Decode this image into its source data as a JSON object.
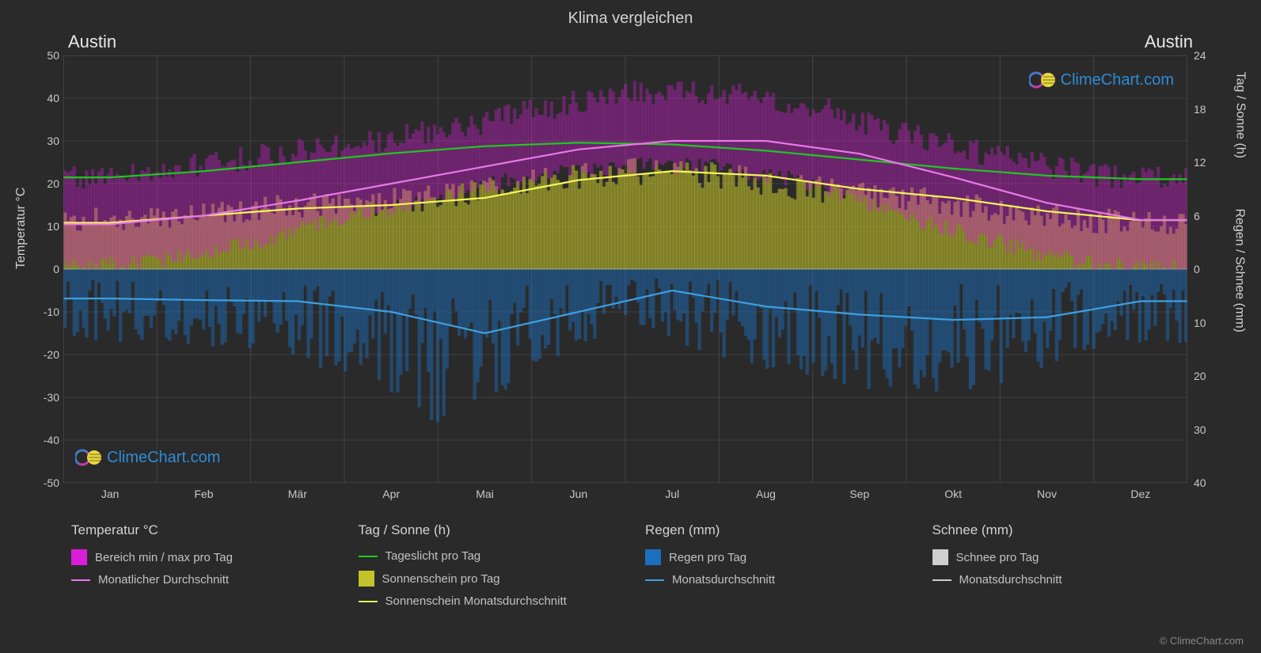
{
  "title": "Klima vergleichen",
  "city_left": "Austin",
  "city_right": "Austin",
  "watermark_text": "ClimeChart.com",
  "copyright": "© ClimeChart.com",
  "axes": {
    "left_label": "Temperatur °C",
    "right_top_label": "Tag / Sonne (h)",
    "right_bottom_label": "Regen / Schnee (mm)",
    "left_ticks": [
      50,
      40,
      30,
      20,
      10,
      0,
      -10,
      -20,
      -30,
      -40,
      -50
    ],
    "left_min": -50,
    "left_max": 50,
    "right_top_ticks": [
      24,
      18,
      12,
      6,
      0
    ],
    "right_top_min": 0,
    "right_top_max": 24,
    "right_bottom_ticks": [
      0,
      10,
      20,
      30,
      40
    ],
    "right_bottom_min": 0,
    "right_bottom_max": 40,
    "months": [
      "Jan",
      "Feb",
      "Mär",
      "Apr",
      "Mai",
      "Jun",
      "Jul",
      "Aug",
      "Sep",
      "Okt",
      "Nov",
      "Dez"
    ]
  },
  "colors": {
    "background": "#2a2a2a",
    "grid": "#555555",
    "axis_text": "#c8c8c8",
    "temp_range_fill": "#d91ed9",
    "temp_avg_line": "#e878e8",
    "daylight_line": "#1fc71f",
    "sunshine_fill": "#c2c22a",
    "sunshine_line": "#f5f55a",
    "rain_fill": "#1a6fbf",
    "rain_line": "#3d9fe0",
    "snow_fill": "#cfcfcf",
    "snow_line": "#cfcfcf",
    "zero_line": "#888888"
  },
  "series": {
    "daylight_h": [
      10.3,
      11.0,
      12.0,
      13.0,
      13.8,
      14.2,
      14.0,
      13.3,
      12.3,
      11.3,
      10.5,
      10.1
    ],
    "sunshine_h": [
      5.2,
      6.0,
      6.8,
      7.2,
      8.0,
      10.0,
      11.0,
      10.5,
      9.0,
      8.0,
      6.5,
      5.5
    ],
    "temp_avg_c": [
      10.5,
      12.5,
      16.0,
      20.0,
      24.0,
      28.0,
      30.0,
      30.0,
      27.0,
      21.5,
      15.5,
      11.5
    ],
    "temp_max_c": [
      20,
      22,
      25,
      28,
      31,
      36,
      40,
      40,
      37,
      30,
      25,
      21
    ],
    "temp_min_c": [
      0,
      2,
      6,
      12,
      17,
      22,
      24,
      24,
      20,
      12,
      6,
      1
    ],
    "rain_mm": [
      5.5,
      5.8,
      6.0,
      8.0,
      12.0,
      8.0,
      4.0,
      7.0,
      8.5,
      9.5,
      9.0,
      6.0
    ]
  },
  "legend": {
    "groups": [
      {
        "header": "Temperatur °C",
        "items": [
          {
            "type": "swatch",
            "color": "#d91ed9",
            "label": "Bereich min / max pro Tag"
          },
          {
            "type": "line",
            "color": "#e878e8",
            "label": "Monatlicher Durchschnitt"
          }
        ]
      },
      {
        "header": "Tag / Sonne (h)",
        "items": [
          {
            "type": "line",
            "color": "#1fc71f",
            "label": "Tageslicht pro Tag"
          },
          {
            "type": "swatch",
            "color": "#c2c22a",
            "label": "Sonnenschein pro Tag"
          },
          {
            "type": "line",
            "color": "#f5f55a",
            "label": "Sonnenschein Monatsdurchschnitt"
          }
        ]
      },
      {
        "header": "Regen (mm)",
        "items": [
          {
            "type": "swatch",
            "color": "#1a6fbf",
            "label": "Regen pro Tag"
          },
          {
            "type": "line",
            "color": "#3d9fe0",
            "label": "Monatsdurchschnitt"
          }
        ]
      },
      {
        "header": "Schnee (mm)",
        "items": [
          {
            "type": "swatch",
            "color": "#cfcfcf",
            "label": "Schnee pro Tag"
          },
          {
            "type": "line",
            "color": "#cfcfcf",
            "label": "Monatsdurchschnitt"
          }
        ]
      }
    ]
  },
  "styling": {
    "line_width": 2.2,
    "grid_width": 1,
    "font_family": "Arial",
    "title_fontsize": 20,
    "axis_fontsize": 16,
    "tick_fontsize": 14,
    "legend_header_fontsize": 17,
    "legend_item_fontsize": 15
  }
}
